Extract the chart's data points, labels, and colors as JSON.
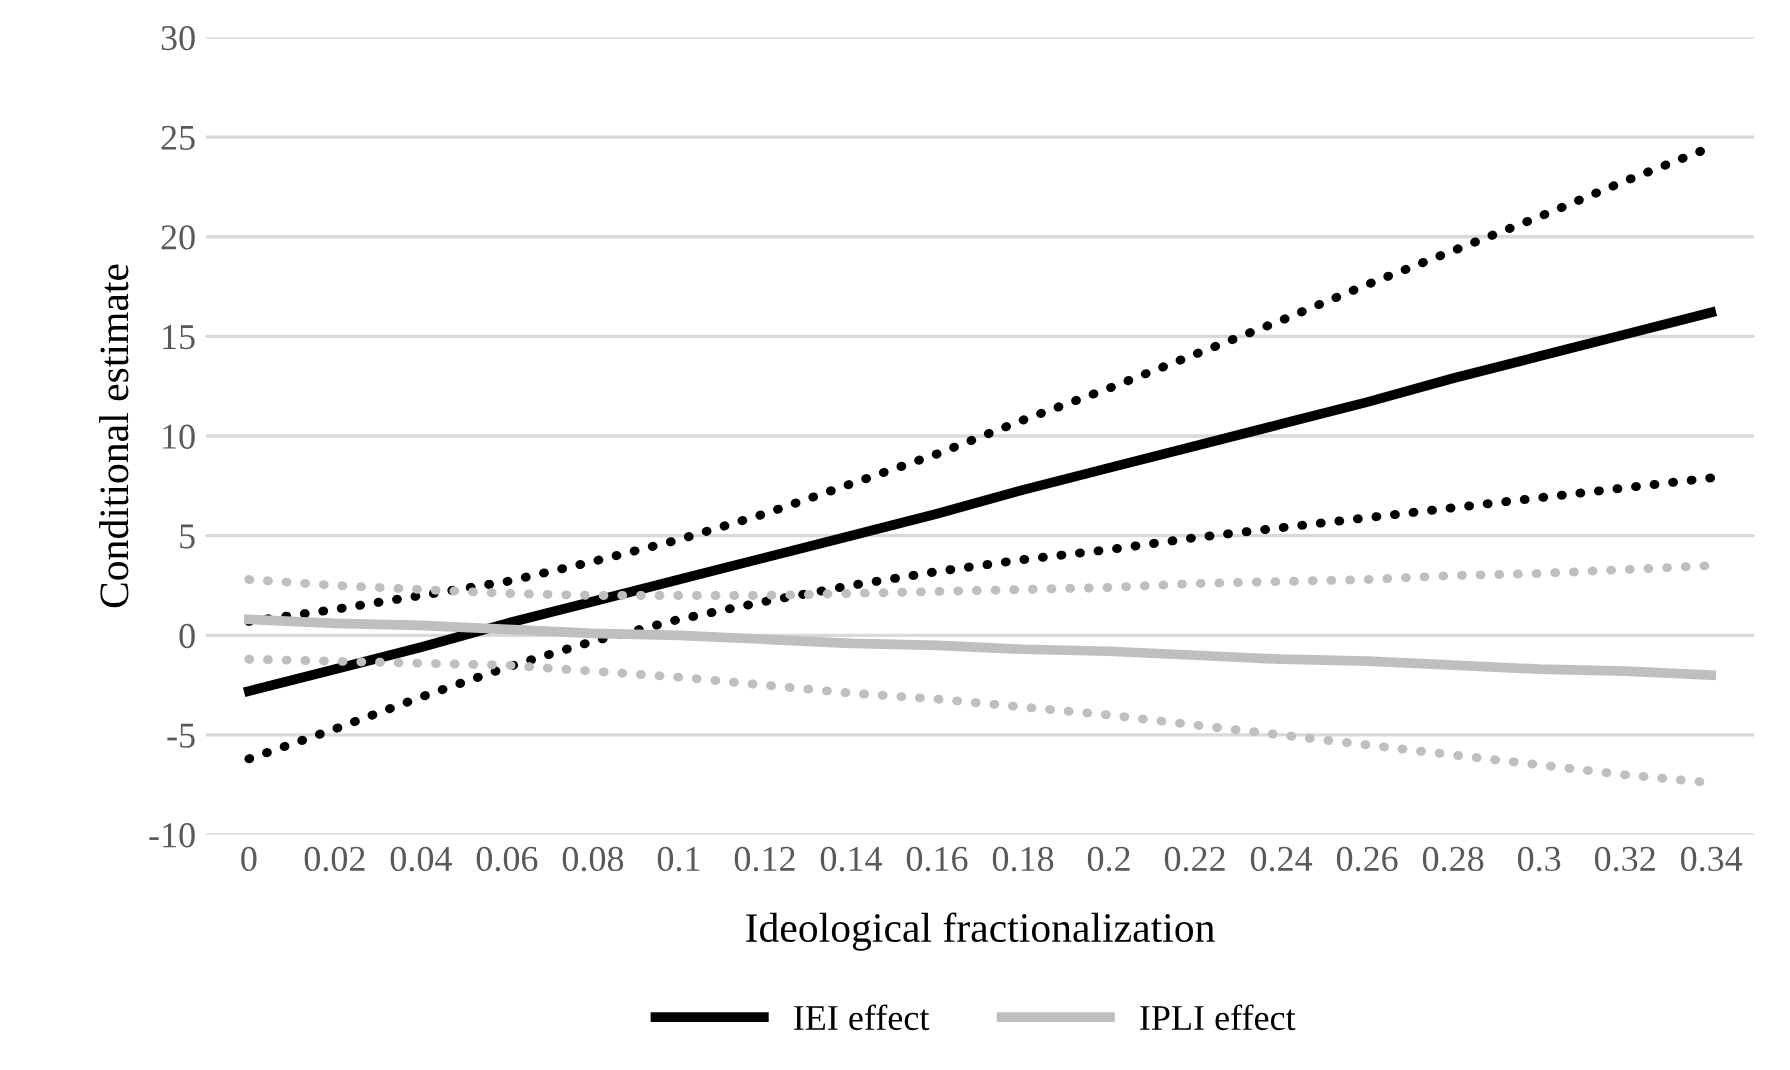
{
  "chart_data": {
    "type": "line",
    "xlabel": "Ideological fractionalization",
    "ylabel": "Conditional estimate",
    "categories": [
      "0",
      "0.02",
      "0.04",
      "0.06",
      "0.08",
      "0.1",
      "0.12",
      "0.14",
      "0.16",
      "0.18",
      "0.2",
      "0.22",
      "0.24",
      "0.26",
      "0.28",
      "0.3",
      "0.32",
      "0.34"
    ],
    "series": [
      {
        "name": "IEI effect",
        "color": "#000000",
        "line_style": "solid",
        "values": [
          -2.8,
          -1.7,
          -0.6,
          0.6,
          1.7,
          2.8,
          3.9,
          5.0,
          6.1,
          7.3,
          8.4,
          9.5,
          10.6,
          11.7,
          12.9,
          14.0,
          15.1,
          16.2
        ]
      },
      {
        "color": "#000000",
        "line_style": "dotted",
        "values": [
          0.7,
          1.3,
          2.0,
          2.7,
          3.7,
          4.8,
          6.1,
          7.6,
          9.1,
          10.8,
          12.4,
          14.1,
          15.8,
          17.6,
          19.3,
          21.0,
          22.8,
          24.5
        ]
      },
      {
        "color": "#000000",
        "line_style": "dotted",
        "values": [
          -6.2,
          -4.7,
          -3.1,
          -1.6,
          -0.3,
          0.8,
          1.7,
          2.5,
          3.2,
          3.8,
          4.3,
          4.9,
          5.4,
          5.9,
          6.4,
          6.9,
          7.4,
          7.9
        ]
      },
      {
        "name": "IPLI effect",
        "color": "#bfbfbf",
        "line_style": "solid",
        "values": [
          0.8,
          0.6,
          0.5,
          0.3,
          0.1,
          0.0,
          -0.2,
          -0.4,
          -0.5,
          -0.7,
          -0.8,
          -1.0,
          -1.2,
          -1.3,
          -1.5,
          -1.7,
          -1.8,
          -2.0
        ]
      },
      {
        "color": "#bfbfbf",
        "line_style": "dotted",
        "values": [
          2.8,
          2.5,
          2.3,
          2.1,
          2.0,
          2.0,
          2.0,
          2.1,
          2.2,
          2.3,
          2.4,
          2.6,
          2.7,
          2.8,
          3.0,
          3.1,
          3.3,
          3.5
        ]
      },
      {
        "color": "#bfbfbf",
        "line_style": "dotted",
        "values": [
          -1.2,
          -1.3,
          -1.4,
          -1.5,
          -1.8,
          -2.1,
          -2.5,
          -2.9,
          -3.2,
          -3.6,
          -4.0,
          -4.5,
          -5.0,
          -5.5,
          -6.0,
          -6.5,
          -7.0,
          -7.4
        ]
      }
    ],
    "ylim": [
      -10,
      30
    ],
    "yticks": [
      -10,
      -5,
      0,
      5,
      10,
      15,
      20,
      25,
      30
    ],
    "grid": "y",
    "legend": "bottom",
    "marker": "none"
  }
}
